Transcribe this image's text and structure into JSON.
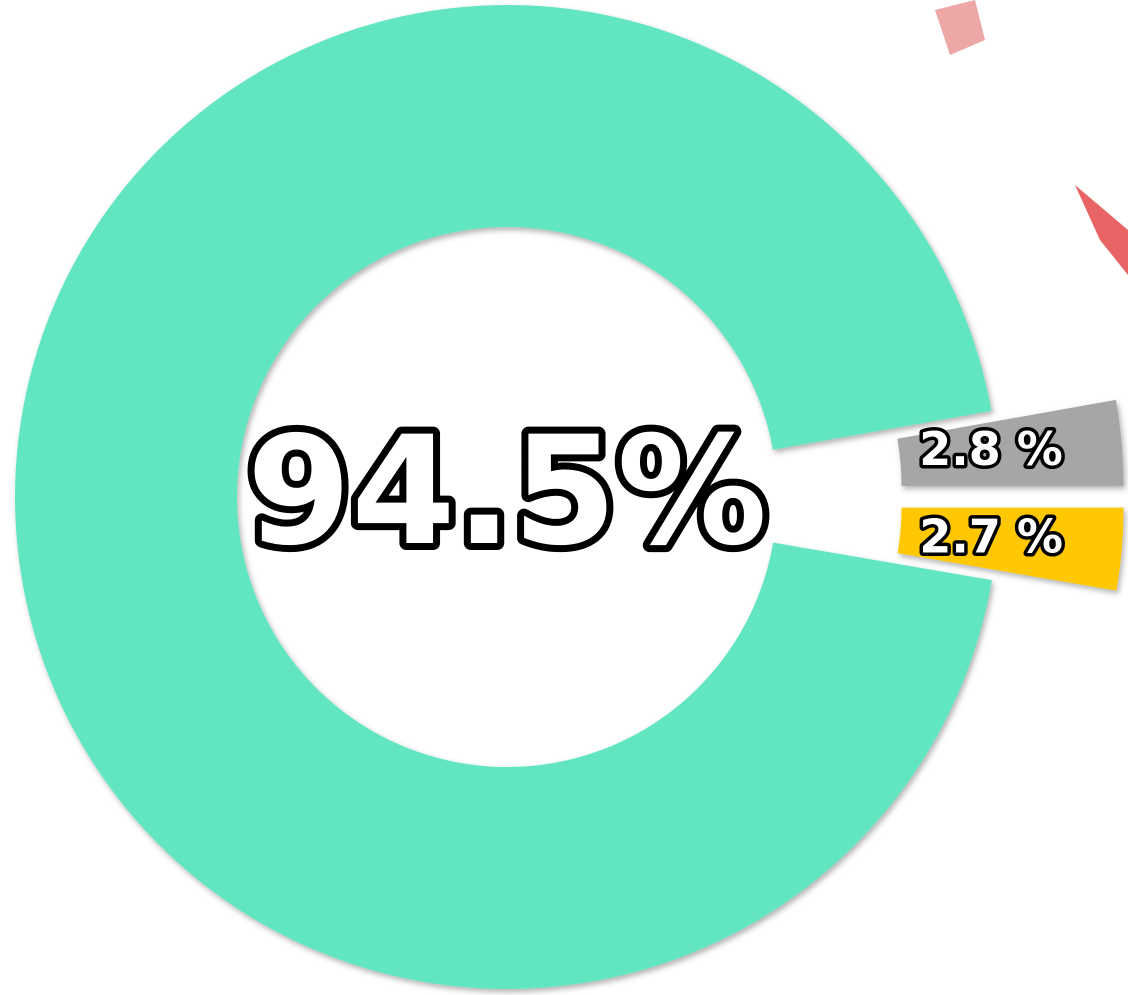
{
  "chart_data": {
    "type": "pie",
    "donut": true,
    "values": [
      94.5,
      2.8,
      2.7
    ],
    "value_labels": [
      "94.5%",
      "2.8 %",
      "2.7 %"
    ],
    "colors": [
      "#62e6c2",
      "#a6a6a6",
      "#ffc800"
    ]
  }
}
